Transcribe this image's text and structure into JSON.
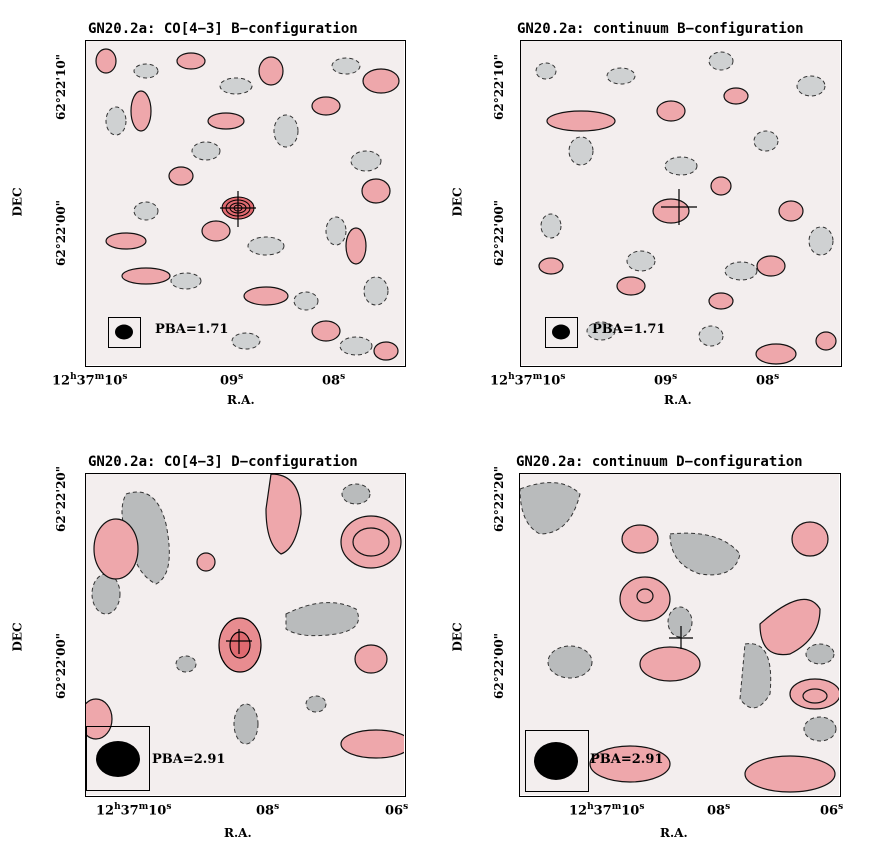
{
  "panels": [
    {
      "title": "GN20.2a: CO[4−3] B−configuration",
      "ylabel": "DEC",
      "xlabel": "R.A.",
      "dec_ticks": [
        "62°22'10\"",
        "62°22'00\""
      ],
      "ra_ticks": {
        "first_h": "12",
        "first_m": "37",
        "first_s": "10",
        "t2": "09",
        "t3": "08"
      },
      "beam_label": "PBA=1.71"
    },
    {
      "title": "GN20.2a: continuum B−configuration",
      "ylabel": "DEC",
      "xlabel": "R.A.",
      "dec_ticks": [
        "62°22'10\"",
        "62°22'00\""
      ],
      "ra_ticks": {
        "first_h": "12",
        "first_m": "37",
        "first_s": "10",
        "t2": "09",
        "t3": "08"
      },
      "beam_label": "PBA=1.71"
    },
    {
      "title": "GN20.2a: CO[4−3] D−configuration",
      "ylabel": "DEC",
      "xlabel": "R.A.",
      "dec_ticks": [
        "62°22'20\"",
        "62°22'00\""
      ],
      "ra_ticks": {
        "first_h": "12",
        "first_m": "37",
        "first_s": "10",
        "t2": "08",
        "t3": "06"
      },
      "beam_label": "PBA=2.91"
    },
    {
      "title": "GN20.2a: continuum D−configuration",
      "ylabel": "DEC",
      "xlabel": "R.A.",
      "dec_ticks": [
        "62°22'20\"",
        "62°22'00\""
      ],
      "ra_ticks": {
        "first_h": "12",
        "first_m": "37",
        "first_s": "10",
        "t2": "08",
        "t3": "06"
      },
      "beam_label": "PBA=2.91"
    }
  ],
  "colors": {
    "positive": "#e8767c",
    "positive_light": "#f6cdd0",
    "negative": "#9a9a9a",
    "negative_light": "#d8dadb",
    "background": "#f3ecec"
  }
}
